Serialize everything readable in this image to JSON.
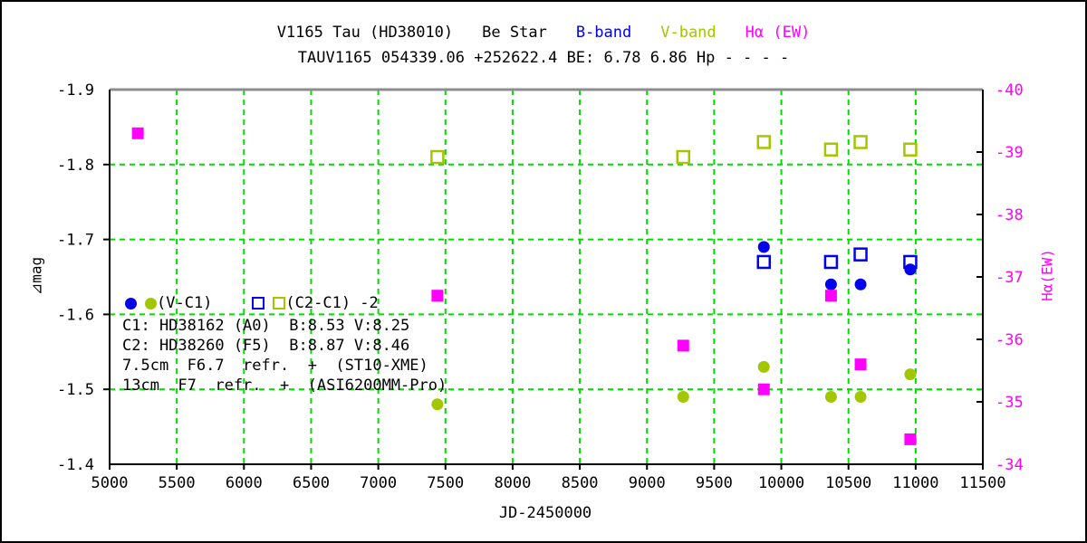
{
  "colors": {
    "b_band": "#0000EE",
    "v_band": "#A2C600",
    "h_alpha": "#FF00FF",
    "grid_green": "#00DB00",
    "frame": "#000000",
    "frame_top": "#8C8C8C"
  },
  "legend": {
    "filled_label": "(V-C1)",
    "open_label": "(C2-C1) -2"
  },
  "annotations": [
    "C1: HD38162 (A0)  B:8.53 V:8.25",
    "C2: HD38260 (F5)  B:8.87 V:8.46",
    "7.5cm  F6.7  refr.  +  (ST10-XME)",
    "13cm  F7  refr.  +  (ASI6200MM-Pro)"
  ],
  "chart_data": {
    "type": "scatter",
    "title_parts": {
      "star": "V1165 Tau (HD38010)",
      "star_type": "Be Star",
      "b_label": "B-band",
      "v_label": "V-band",
      "ha_label": "Hα (EW)"
    },
    "subtitle": "TAUV1165 054339.06 +252622.4 BE: 6.78 6.86 Hp - - - -",
    "xlabel": "JD-2450000",
    "ylabel_left": "⊿mag",
    "ylabel_right": "Hα(EW)",
    "xlim": [
      5000,
      11500
    ],
    "ylim_left": [
      -1.9,
      -1.4
    ],
    "ylim_right": [
      -40,
      -34
    ],
    "x_ticks": [
      5000,
      5500,
      6000,
      6500,
      7000,
      7500,
      8000,
      8500,
      9000,
      9500,
      10000,
      10500,
      11000,
      11500
    ],
    "y_ticks_left": [
      -1.9,
      -1.8,
      -1.7,
      -1.6,
      -1.5,
      -1.4
    ],
    "y_ticks_right": [
      -40,
      -39,
      -38,
      -37,
      -36,
      -35,
      -34
    ],
    "grid": {
      "x": [
        5500,
        6000,
        6500,
        7000,
        7500,
        8000,
        8500,
        9000,
        9500,
        10000,
        10500,
        11000
      ],
      "y_left": [
        -1.8,
        -1.7,
        -1.6,
        -1.5
      ]
    },
    "series": [
      {
        "name": "B-band (C2-C1) -2",
        "marker": "open-square",
        "color": "#0000EE",
        "axis": "left",
        "points": [
          [
            9870,
            -1.67
          ],
          [
            10370,
            -1.67
          ],
          [
            10590,
            -1.68
          ],
          [
            10960,
            -1.67
          ]
        ]
      },
      {
        "name": "V-band (C2-C1) -2",
        "marker": "open-square",
        "color": "#A2C600",
        "axis": "left",
        "points": [
          [
            7440,
            -1.81
          ],
          [
            9270,
            -1.81
          ],
          [
            9870,
            -1.83
          ],
          [
            10370,
            -1.82
          ],
          [
            10590,
            -1.83
          ],
          [
            10960,
            -1.82
          ]
        ]
      },
      {
        "name": "B-band (V-C1)",
        "marker": "circle",
        "color": "#0000EE",
        "axis": "left",
        "points": [
          [
            9870,
            -1.69
          ],
          [
            10370,
            -1.64
          ],
          [
            10590,
            -1.64
          ],
          [
            10960,
            -1.66
          ]
        ]
      },
      {
        "name": "V-band (V-C1)",
        "marker": "circle",
        "color": "#A2C600",
        "axis": "left",
        "points": [
          [
            7440,
            -1.48
          ],
          [
            9270,
            -1.49
          ],
          [
            9870,
            -1.53
          ],
          [
            10370,
            -1.49
          ],
          [
            10590,
            -1.49
          ],
          [
            10960,
            -1.52
          ]
        ]
      },
      {
        "name": "Hα (EW)",
        "marker": "square",
        "color": "#FF00FF",
        "axis": "right",
        "points": [
          [
            5210,
            -39.3
          ],
          [
            7440,
            -36.7
          ],
          [
            9270,
            -35.9
          ],
          [
            9870,
            -35.2
          ],
          [
            10370,
            -36.7
          ],
          [
            10590,
            -35.6
          ],
          [
            10960,
            -34.4
          ]
        ]
      }
    ]
  }
}
